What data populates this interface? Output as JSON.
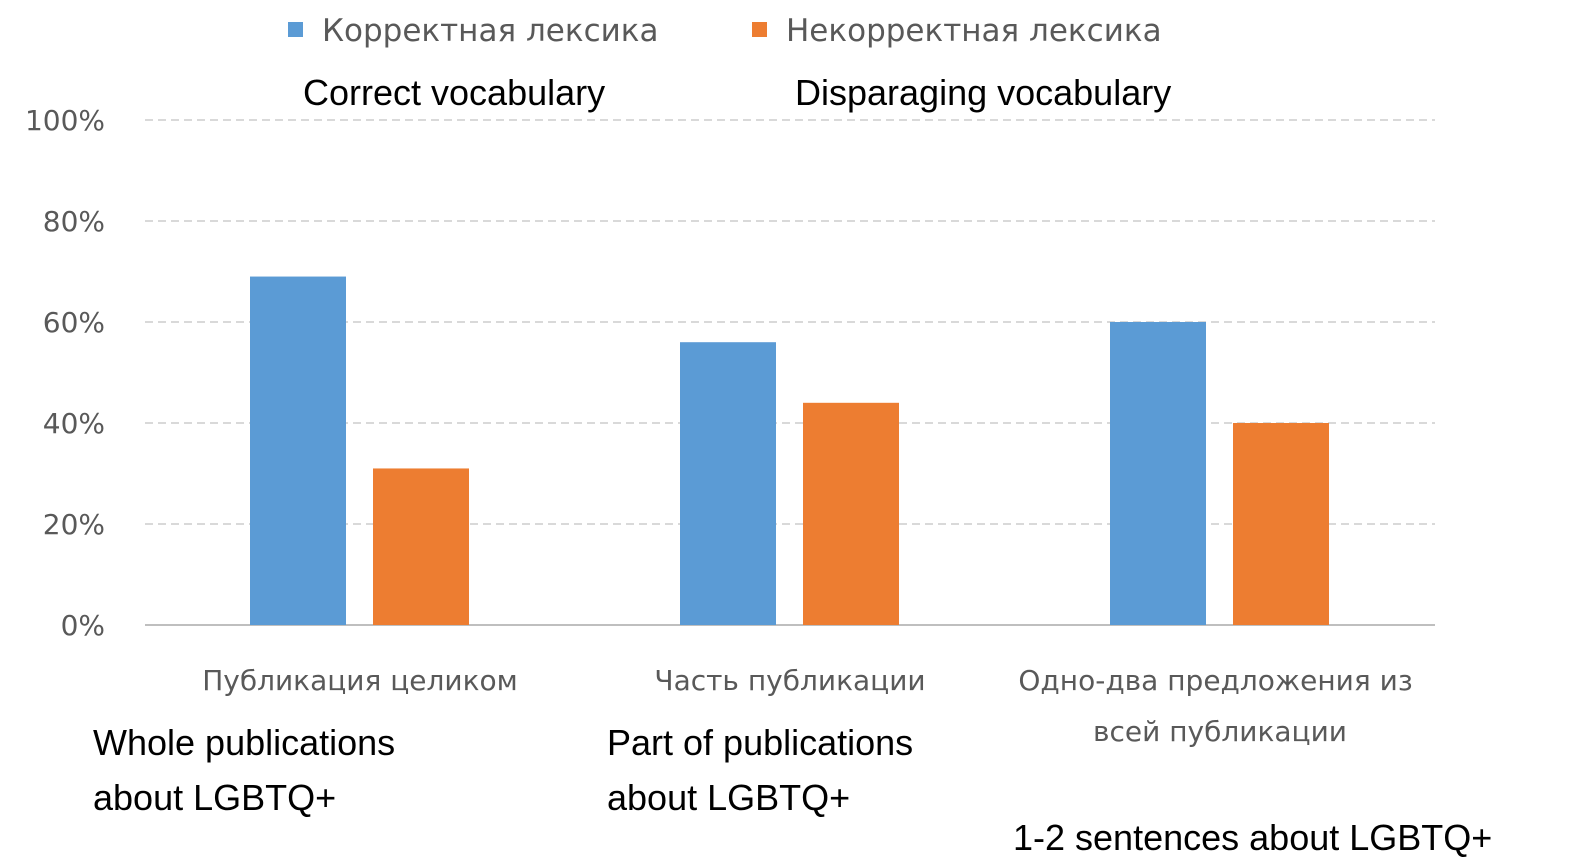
{
  "chart_data": {
    "type": "bar",
    "legend": "top",
    "grid": true,
    "categories": [
      "Публикация целиком",
      "Часть публикации",
      "Одно-два предложения из всей публикации"
    ],
    "series": [
      {
        "name": "Корректная лексика",
        "color": "#5b9bd5",
        "values": [
          69,
          56,
          60
        ]
      },
      {
        "name": "Некорректная лексика",
        "color": "#ed7d31",
        "values": [
          31,
          44,
          40
        ]
      }
    ],
    "ylim": [
      0,
      100
    ],
    "yticks": [
      {
        "value": 0,
        "label": "0%"
      },
      {
        "value": 20,
        "label": "20%"
      },
      {
        "value": 40,
        "label": "40%"
      },
      {
        "value": 60,
        "label": "60%"
      },
      {
        "value": 80,
        "label": "80%"
      },
      {
        "value": 100,
        "label": "100%"
      }
    ],
    "annotations": [
      "Correct vocabulary",
      "Disparaging vocabulary",
      "Whole publications about LGBTQ+",
      "Part of publications about LGBTQ+",
      "1-2 sentences about LGBTQ+"
    ]
  }
}
